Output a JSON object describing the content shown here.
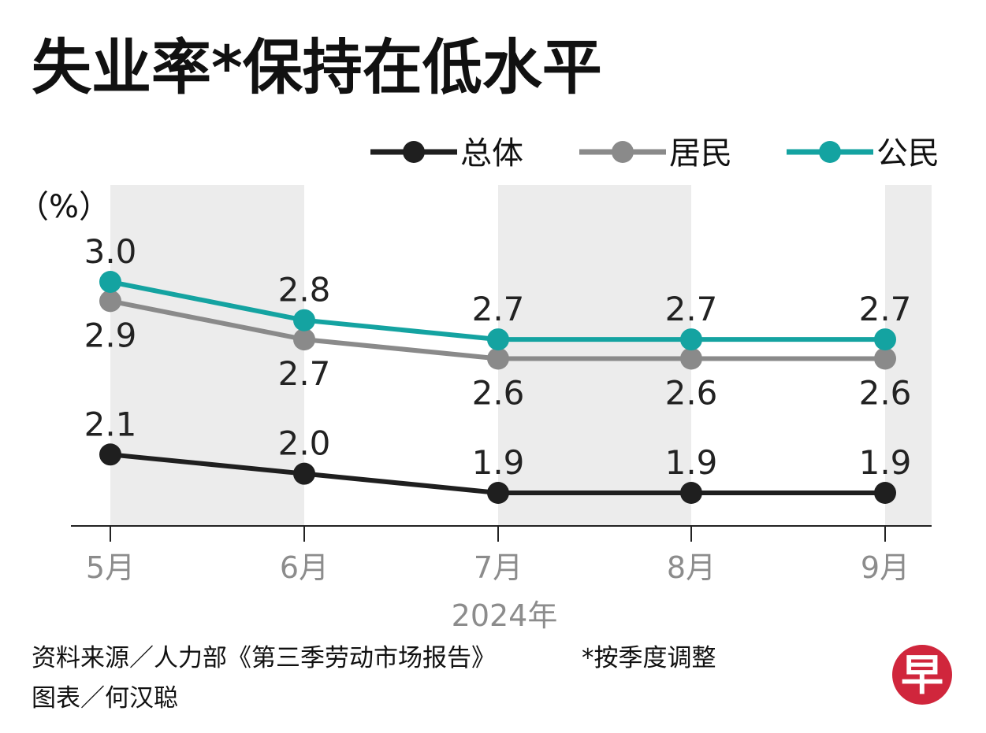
{
  "title": "失业率*保持在低水平",
  "unit_label": "（%）",
  "year_label": "2024年",
  "source_text": "资料来源／人力部《第三季劳动市场报告》",
  "note_text": "*按季度调整",
  "credit_text": "图表／何汉聪",
  "logo_text": "早",
  "colors": {
    "overall": "#1f1f1f",
    "resident": "#8a8a8a",
    "citizen": "#14a3a1",
    "band": "#ececec",
    "logo": "#d0263c"
  },
  "chart_data": {
    "type": "line",
    "categories": [
      "5月",
      "6月",
      "7月",
      "8月",
      "9月"
    ],
    "ylim": [
      1.9,
      3.0
    ],
    "grid": false,
    "legend_position": "top-right",
    "series": [
      {
        "key": "overall",
        "name": "总体",
        "values": [
          2.1,
          2.0,
          1.9,
          1.9,
          1.9
        ],
        "labels": [
          "2.1",
          "2.0",
          "1.9",
          "1.9",
          "1.9"
        ],
        "label_position": "above"
      },
      {
        "key": "resident",
        "name": "居民",
        "values": [
          2.9,
          2.7,
          2.6,
          2.6,
          2.6
        ],
        "labels": [
          "2.9",
          "2.7",
          "2.6",
          "2.6",
          "2.6"
        ],
        "label_position": "below"
      },
      {
        "key": "citizen",
        "name": "公民",
        "values": [
          3.0,
          2.8,
          2.7,
          2.7,
          2.7
        ],
        "labels": [
          "3.0",
          "2.8",
          "2.7",
          "2.7",
          "2.7"
        ],
        "label_position": "above"
      }
    ]
  }
}
